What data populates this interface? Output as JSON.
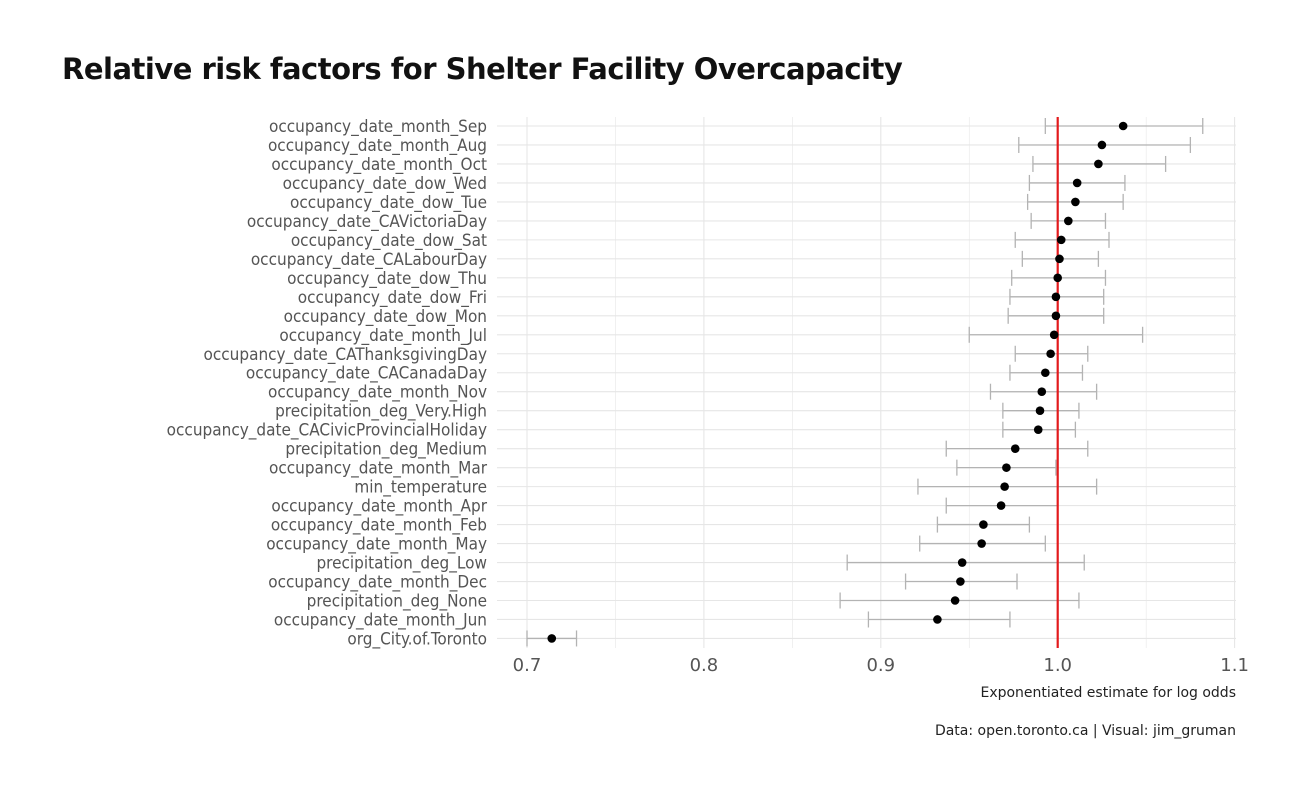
{
  "chart_data": {
    "type": "scatter",
    "title": "Relative risk factors for Shelter Facility Overcapacity",
    "xlabel": "Exponentiated estimate for log odds",
    "caption": "Data: open.toronto.ca | Visual: jim_gruman",
    "xlim": [
      0.7,
      1.1
    ],
    "x_ticks": [
      "0.7",
      "0.8",
      "0.9",
      "1.0",
      "1.1"
    ],
    "x_tick_values": [
      0.7,
      0.8,
      0.9,
      1.0,
      1.1
    ],
    "reference_line": 1.0,
    "grid": true,
    "colors": {
      "point": "#000000",
      "errorbar": "#b3b3b3",
      "reference": "#e31a1c",
      "grid": "#e6e6e6"
    },
    "terms": [
      {
        "term": "occupancy_date_month_Sep",
        "estimate": 1.037,
        "low": 0.993,
        "high": 1.082
      },
      {
        "term": "occupancy_date_month_Aug",
        "estimate": 1.025,
        "low": 0.978,
        "high": 1.075
      },
      {
        "term": "occupancy_date_month_Oct",
        "estimate": 1.023,
        "low": 0.986,
        "high": 1.061
      },
      {
        "term": "occupancy_date_dow_Wed",
        "estimate": 1.011,
        "low": 0.984,
        "high": 1.038
      },
      {
        "term": "occupancy_date_dow_Tue",
        "estimate": 1.01,
        "low": 0.983,
        "high": 1.037
      },
      {
        "term": "occupancy_date_CAVictoriaDay",
        "estimate": 1.006,
        "low": 0.985,
        "high": 1.027
      },
      {
        "term": "occupancy_date_dow_Sat",
        "estimate": 1.002,
        "low": 0.976,
        "high": 1.029
      },
      {
        "term": "occupancy_date_CALabourDay",
        "estimate": 1.001,
        "low": 0.98,
        "high": 1.023
      },
      {
        "term": "occupancy_date_dow_Thu",
        "estimate": 1.0,
        "low": 0.974,
        "high": 1.027
      },
      {
        "term": "occupancy_date_dow_Fri",
        "estimate": 0.999,
        "low": 0.973,
        "high": 1.026
      },
      {
        "term": "occupancy_date_dow_Mon",
        "estimate": 0.999,
        "low": 0.972,
        "high": 1.026
      },
      {
        "term": "occupancy_date_month_Jul",
        "estimate": 0.998,
        "low": 0.95,
        "high": 1.048
      },
      {
        "term": "occupancy_date_CAThanksgivingDay",
        "estimate": 0.996,
        "low": 0.976,
        "high": 1.017
      },
      {
        "term": "occupancy_date_CACanadaDay",
        "estimate": 0.993,
        "low": 0.973,
        "high": 1.014
      },
      {
        "term": "occupancy_date_month_Nov",
        "estimate": 0.991,
        "low": 0.962,
        "high": 1.022
      },
      {
        "term": "precipitation_deg_Very.High",
        "estimate": 0.99,
        "low": 0.969,
        "high": 1.012
      },
      {
        "term": "occupancy_date_CACivicProvincialHoliday",
        "estimate": 0.989,
        "low": 0.969,
        "high": 1.01
      },
      {
        "term": "precipitation_deg_Medium",
        "estimate": 0.976,
        "low": 0.937,
        "high": 1.017
      },
      {
        "term": "occupancy_date_month_Mar",
        "estimate": 0.971,
        "low": 0.943,
        "high": 0.999
      },
      {
        "term": "min_temperature",
        "estimate": 0.97,
        "low": 0.921,
        "high": 1.022
      },
      {
        "term": "occupancy_date_month_Apr",
        "estimate": 0.968,
        "low": 0.937,
        "high": 1.0
      },
      {
        "term": "occupancy_date_month_Feb",
        "estimate": 0.958,
        "low": 0.932,
        "high": 0.984
      },
      {
        "term": "occupancy_date_month_May",
        "estimate": 0.957,
        "low": 0.922,
        "high": 0.993
      },
      {
        "term": "precipitation_deg_Low",
        "estimate": 0.946,
        "low": 0.881,
        "high": 1.015
      },
      {
        "term": "occupancy_date_month_Dec",
        "estimate": 0.945,
        "low": 0.914,
        "high": 0.977
      },
      {
        "term": "precipitation_deg_None",
        "estimate": 0.942,
        "low": 0.877,
        "high": 1.012
      },
      {
        "term": "occupancy_date_month_Jun",
        "estimate": 0.932,
        "low": 0.893,
        "high": 0.973
      },
      {
        "term": "org_City.of.Toronto",
        "estimate": 0.714,
        "low": 0.7,
        "high": 0.728
      }
    ]
  }
}
